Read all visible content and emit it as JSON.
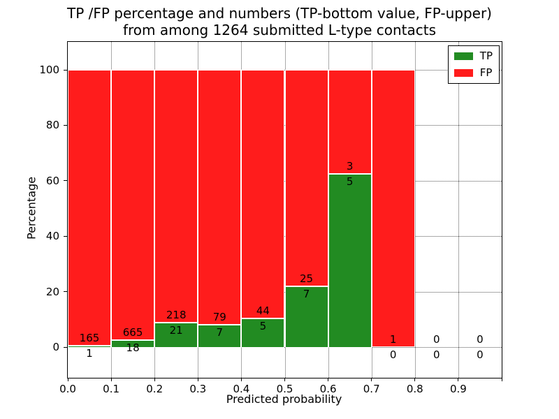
{
  "figure": {
    "title_line1": "TP /FP percentage and numbers (TP-bottom value, FP-upper)",
    "title_line2": "from among 1264 submitted L-type contacts"
  },
  "chart_data": {
    "type": "bar",
    "stacked": true,
    "normalized": "each bin scaled to 100%",
    "title": "TP /FP percentage and numbers (TP-bottom value, FP-upper) from among 1264 submitted L-type contacts",
    "xlabel": "Predicted probability",
    "ylabel": "Percentage",
    "total_contacts": 1264,
    "bin_width": 0.1,
    "bin_starts": [
      0.0,
      0.1,
      0.2,
      0.3,
      0.4,
      0.5,
      0.6,
      0.7,
      0.8,
      0.9
    ],
    "series": [
      {
        "name": "TP",
        "color": "#228b22",
        "counts": [
          1,
          18,
          21,
          7,
          5,
          7,
          5,
          0,
          0,
          0
        ]
      },
      {
        "name": "FP",
        "color": "#ff1c1c",
        "counts": [
          165,
          665,
          218,
          79,
          44,
          25,
          3,
          1,
          0,
          0
        ]
      }
    ],
    "tp_percent_per_bin": [
      0.6,
      2.6,
      8.8,
      8.1,
      10.2,
      21.9,
      62.5,
      0.0,
      0.0,
      0.0
    ],
    "x_tick_labels": [
      "0.0",
      "0.1",
      "0.2",
      "0.3",
      "0.4",
      "0.5",
      "0.6",
      "0.7",
      "0.8",
      "0.9"
    ],
    "y_tick_values": [
      0,
      20,
      40,
      60,
      80,
      100
    ],
    "xlim": [
      0.0,
      1.0
    ],
    "ylim": [
      -11,
      110
    ],
    "grid": "dotted both axes",
    "legend": {
      "position": "upper right",
      "entries": [
        {
          "label": "TP",
          "color": "#228b22"
        },
        {
          "label": "FP",
          "color": "#ff1c1c"
        }
      ]
    }
  }
}
